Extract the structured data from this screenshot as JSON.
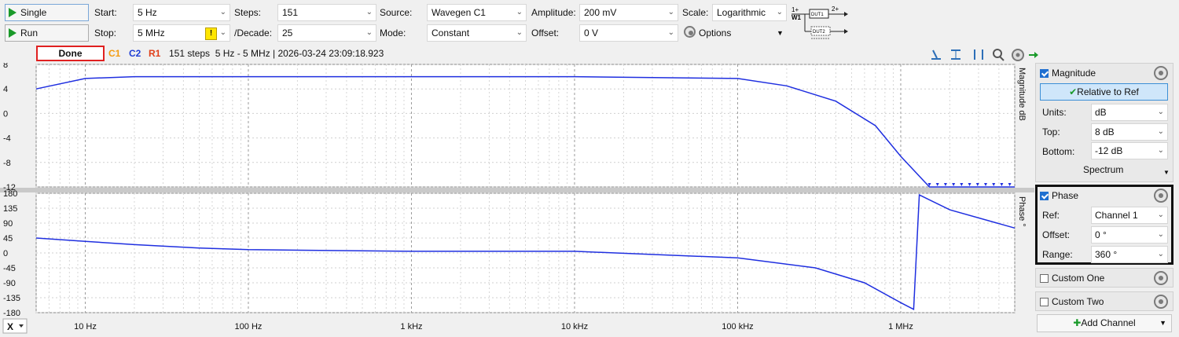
{
  "toolbar": {
    "single_label": "Single",
    "run_label": "Run",
    "start_label": "Start:",
    "start_value": "5 Hz",
    "stop_label": "Stop:",
    "stop_value": "5 MHz",
    "warning_glyph": "!",
    "steps_label": "Steps:",
    "steps_value": "151",
    "per_decade_label": "/Decade:",
    "per_decade_value": "25",
    "source_label": "Source:",
    "source_value": "Wavegen C1",
    "mode_label": "Mode:",
    "mode_value": "Constant",
    "amplitude_label": "Amplitude:",
    "amplitude_value": "200 mV",
    "offset_label": "Offset:",
    "offset_value": "0 V",
    "scale_label": "Scale:",
    "scale_value": "Logarithmic",
    "options_label": "Options",
    "diagram": {
      "w1": "W1",
      "in1": "1+",
      "in2": "2+",
      "dut1": "DUT1",
      "dut2": "DUT2"
    }
  },
  "status": {
    "state": "Done",
    "c1": "C1",
    "c2": "C2",
    "r1": "R1",
    "summary": "151 steps  5 Hz - 5 MHz | 2026-03-24 23:09:18.923"
  },
  "colors": {
    "trace": "#1f2fe0",
    "c1": "#f39c12",
    "c2": "#1e3fd6",
    "r1": "#e0401a",
    "done_border": "#e02020"
  },
  "magnitude_plot": {
    "axis_title": "Magnitude  dB",
    "y_ticks": [
      "8",
      "4",
      "0",
      "-4",
      "-8",
      "-12"
    ]
  },
  "phase_plot": {
    "axis_title": "Phase  °",
    "y_ticks": [
      "180",
      "135",
      "90",
      "45",
      "0",
      "-45",
      "-90",
      "-135",
      "-180"
    ]
  },
  "x_axis": {
    "selector": "X",
    "ticks": [
      "10 Hz",
      "100 Hz",
      "1 kHz",
      "10 kHz",
      "100 kHz",
      "1 MHz"
    ]
  },
  "chart_data": [
    {
      "type": "line",
      "ylabel": "Magnitude dB",
      "xscale": "log",
      "xlim": [
        5,
        5000000
      ],
      "ylim": [
        -12,
        8
      ],
      "x": [
        5,
        10,
        20,
        50,
        100,
        1000,
        10000,
        100000,
        200000,
        400000,
        700000,
        1000000,
        1500000,
        5000000
      ],
      "values": [
        4.0,
        5.7,
        6.0,
        6.0,
        6.0,
        6.0,
        6.0,
        5.7,
        4.5,
        2.0,
        -2.0,
        -7.0,
        -12.0,
        -12.0
      ],
      "grid": true
    },
    {
      "type": "line",
      "ylabel": "Phase °",
      "xscale": "log",
      "xlim": [
        5,
        5000000
      ],
      "ylim": [
        -180,
        180
      ],
      "x": [
        5,
        10,
        20,
        50,
        100,
        1000,
        10000,
        100000,
        300000,
        600000,
        1000000,
        1200000,
        1300000,
        2000000,
        5000000
      ],
      "values": [
        45,
        35,
        25,
        15,
        10,
        5,
        5,
        -15,
        -45,
        -90,
        -150,
        -170,
        175,
        130,
        75
      ],
      "grid": true
    }
  ],
  "side_panel": {
    "magnitude_label": "Magnitude",
    "relative_to_ref": "Relative to Ref",
    "units_label": "Units:",
    "units_value": "dB",
    "top_label": "Top:",
    "top_value": "8 dB",
    "bottom_label": "Bottom:",
    "bottom_value": "-12 dB",
    "spectrum_label": "Spectrum",
    "phase_label": "Phase",
    "ref_label": "Ref:",
    "ref_value": "Channel 1",
    "offset_label": "Offset:",
    "offset_value": "0 °",
    "range_label": "Range:",
    "range_value": "360 °",
    "custom_one": "Custom One",
    "custom_two": "Custom Two",
    "add_channel": "Add Channel"
  }
}
